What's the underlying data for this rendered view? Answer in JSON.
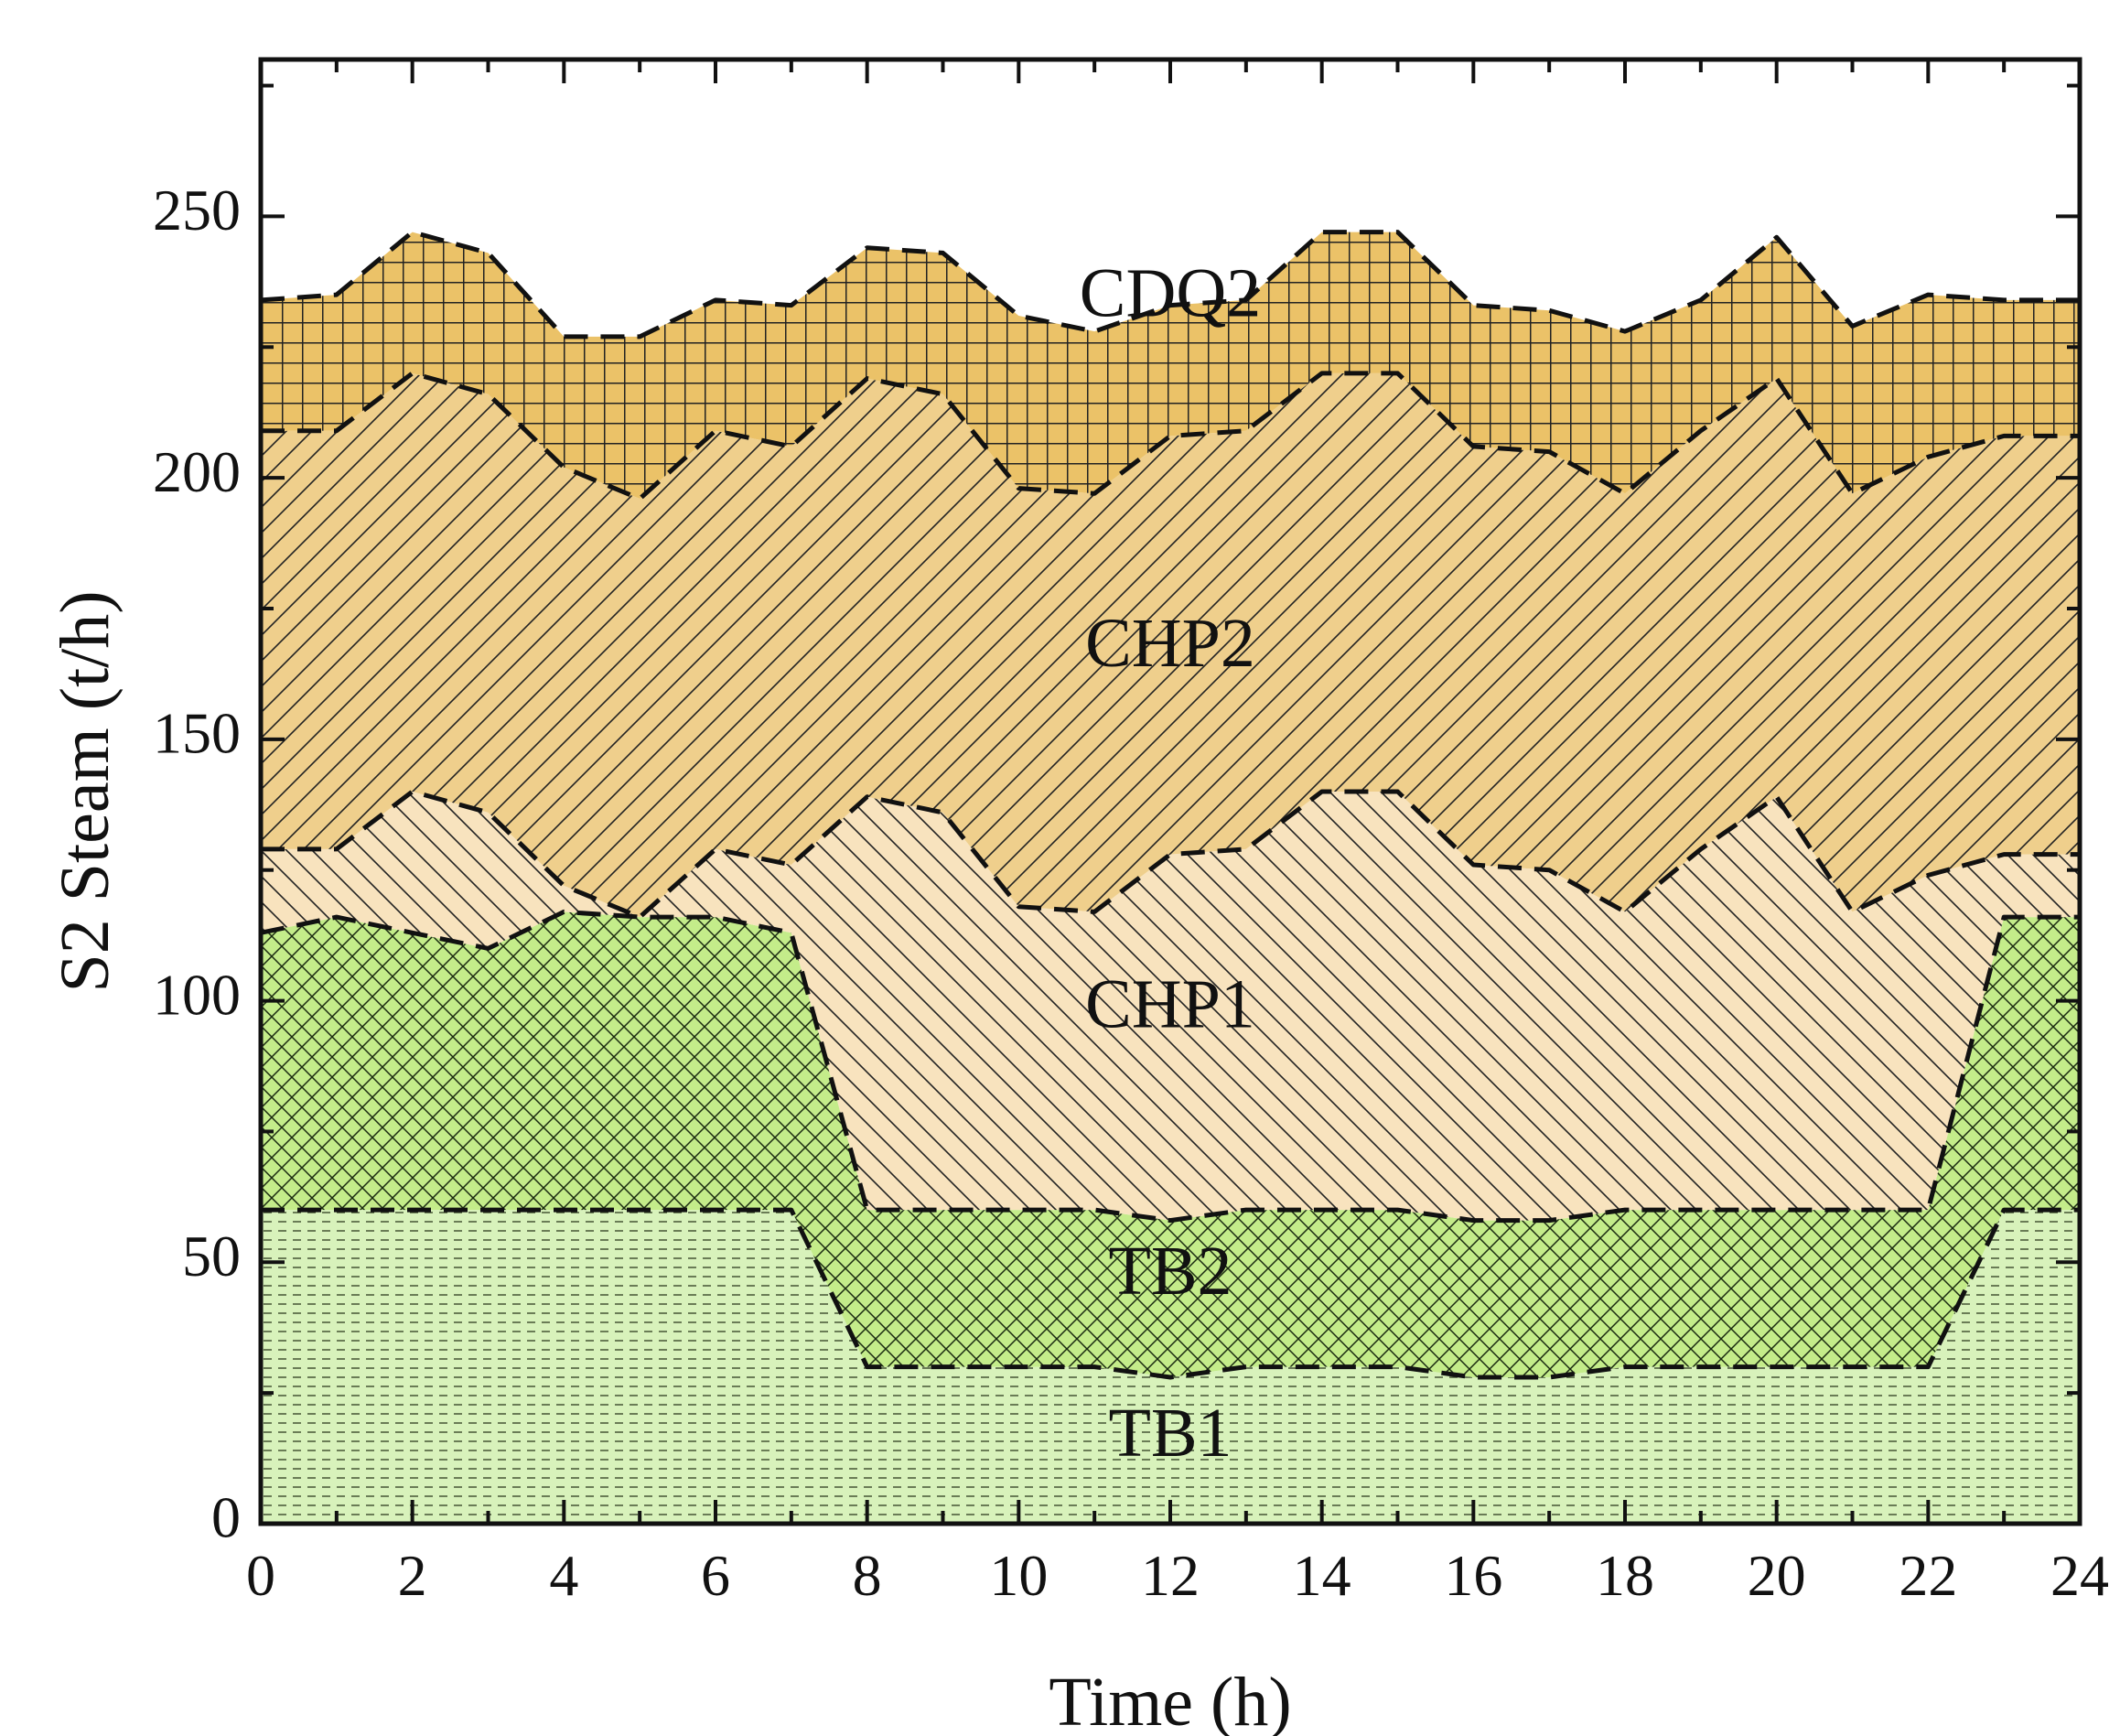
{
  "chart_data": {
    "type": "area",
    "stacked": true,
    "xlabel": "Time (h)",
    "ylabel": "S2 Steam (t/h)",
    "xlim": [
      0,
      24
    ],
    "ylim": [
      0,
      280
    ],
    "xticks": [
      0,
      2,
      4,
      6,
      8,
      10,
      12,
      14,
      16,
      18,
      20,
      22,
      24
    ],
    "yticks": [
      0,
      50,
      100,
      150,
      200,
      250
    ],
    "x": [
      0,
      1,
      2,
      3,
      4,
      5,
      6,
      7,
      8,
      9,
      10,
      11,
      12,
      13,
      14,
      15,
      16,
      17,
      18,
      19,
      20,
      21,
      22,
      23,
      24
    ],
    "series": [
      {
        "name": "TB1",
        "label": "TB1",
        "color": "#d8f2bb",
        "pattern": "horizontal-dash",
        "label_at": [
          12,
          16
        ],
        "values": [
          60,
          60,
          60,
          60,
          60,
          60,
          60,
          60,
          30,
          30,
          30,
          30,
          28,
          30,
          30,
          30,
          28,
          28,
          30,
          30,
          30,
          30,
          30,
          60,
          60
        ]
      },
      {
        "name": "TB2",
        "label": "TB2",
        "color": "#c4ec8a",
        "pattern": "crosshatch-diagonal",
        "label_at": [
          12,
          47
        ],
        "values": [
          53,
          56,
          53,
          50,
          57,
          56,
          56,
          53,
          30,
          30,
          30,
          30,
          30,
          30,
          30,
          30,
          30,
          30,
          30,
          30,
          30,
          30,
          30,
          56,
          56
        ]
      },
      {
        "name": "CHP1",
        "label": "CHP1",
        "color": "#f8e3be",
        "pattern": "diagonal-back",
        "label_at": [
          12,
          98
        ],
        "values": [
          16,
          13,
          27,
          26,
          5,
          0,
          13,
          13,
          79,
          76,
          58,
          57,
          70,
          69,
          80,
          80,
          68,
          67,
          57,
          69,
          79,
          57,
          64,
          12,
          12
        ]
      },
      {
        "name": "CHP2",
        "label": "CHP2",
        "color": "#efcf8c",
        "pattern": "diagonal-forward",
        "label_at": [
          12,
          167
        ],
        "values": [
          80,
          80,
          80,
          80,
          80,
          80,
          80,
          80,
          80,
          80,
          80,
          80,
          80,
          80,
          80,
          80,
          80,
          80,
          80,
          80,
          80,
          80,
          80,
          80,
          80
        ]
      },
      {
        "name": "CDQ2",
        "label": "CDQ2",
        "color": "#ebc268",
        "pattern": "grid",
        "label_at": [
          12,
          234
        ],
        "values": [
          25,
          26,
          27,
          27,
          25,
          31,
          25,
          27,
          25,
          27,
          33,
          31,
          25,
          25,
          27,
          27,
          27,
          27,
          31,
          25,
          27,
          32,
          31,
          26,
          26
        ]
      }
    ]
  }
}
